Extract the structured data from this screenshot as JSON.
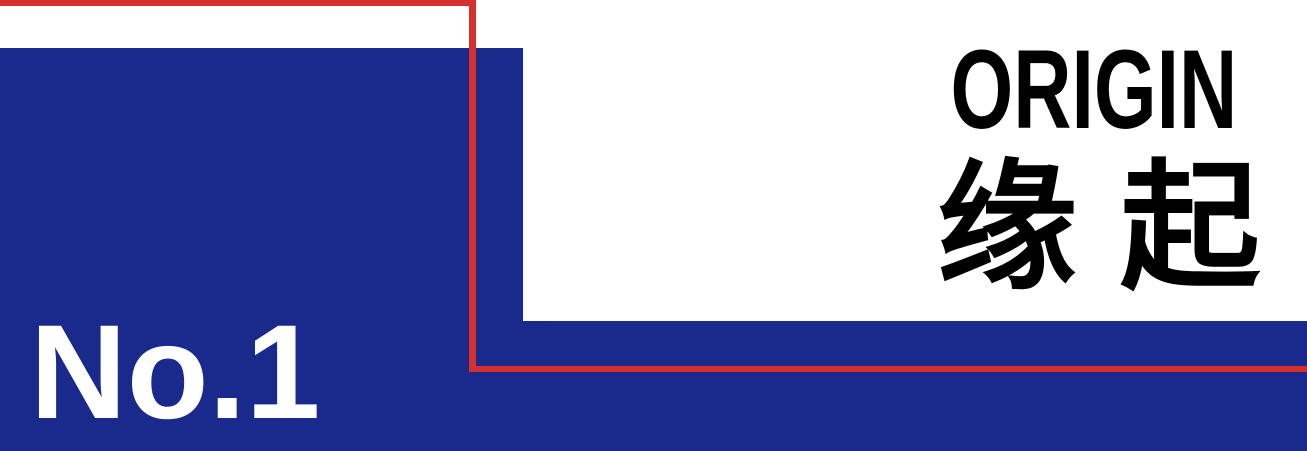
{
  "slide": {
    "section_number": "No.1",
    "title_en": "ORIGIN",
    "title_zh": "缘 起"
  },
  "colors": {
    "bg": "#FFFFFF",
    "panel-blue": "#1A2A8C",
    "frame-red": "#D5302E",
    "title-black": "#000000",
    "number-white": "#FFFFFF"
  }
}
